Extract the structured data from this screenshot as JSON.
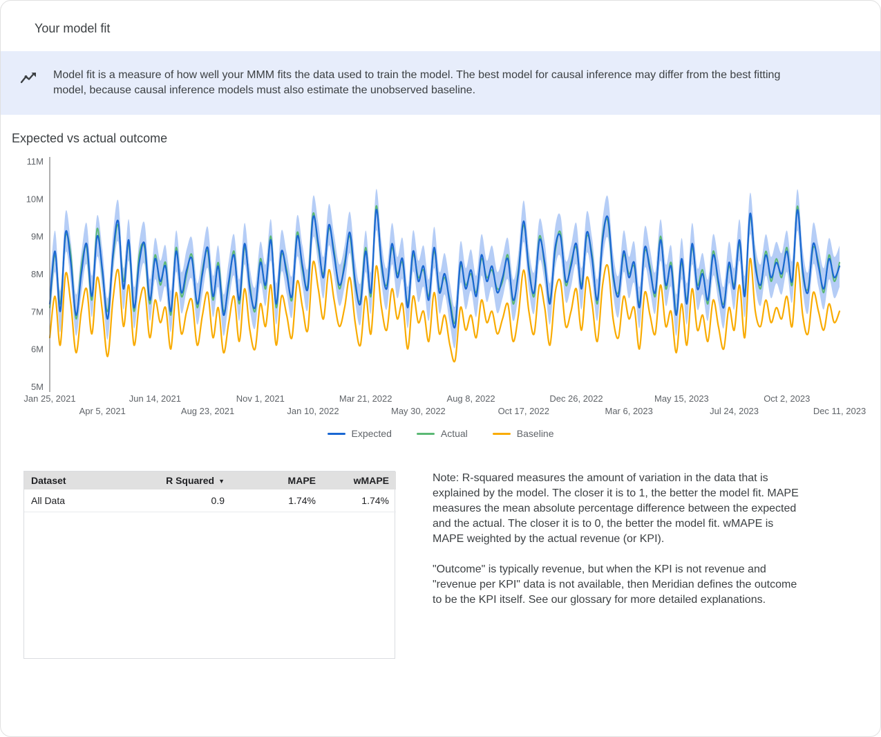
{
  "header": {
    "title": "Your model fit"
  },
  "banner": {
    "text": "Model fit is a measure of how well your MMM fits the data used to train the model. The best model for causal inference may differ from the best fitting model, because causal inference models must also estimate the unobserved baseline."
  },
  "section": {
    "title": "Expected vs actual outcome"
  },
  "table": {
    "headers": {
      "dataset": "Dataset",
      "r_squared": "R Squared",
      "mape": "MAPE",
      "wmape": "wMAPE"
    },
    "sort_icon": "▼",
    "rows": [
      {
        "dataset": "All Data",
        "r_squared": "0.9",
        "mape": "1.74%",
        "wmape": "1.74%"
      }
    ]
  },
  "notes": {
    "p1": "Note: R-squared measures the amount of variation in the data that is explained by the model. The closer it is to 1, the better the model fit. MAPE measures the mean absolute percentage difference between the expected and the actual. The closer it is to 0, the better the model fit. wMAPE is MAPE weighted by the actual revenue (or KPI).",
    "p2": "\"Outcome\" is typically revenue, but when the KPI is not revenue and \"revenue per KPI\" data is not available, then Meridian defines the outcome to be the KPI itself. See our glossary for more detailed explanations."
  },
  "chart_data": {
    "type": "line",
    "title": "Expected vs actual outcome",
    "unit": "M",
    "ylim": [
      5,
      11
    ],
    "y_ticks": [
      "5M",
      "6M",
      "7M",
      "8M",
      "9M",
      "10M",
      "11M"
    ],
    "x_ticks": [
      "Jan 25, 2021",
      "Apr 5, 2021",
      "Jun 14, 2021",
      "Aug 23, 2021",
      "Nov 1, 2021",
      "Jan 10, 2022",
      "Mar 21, 2022",
      "May 30, 2022",
      "Aug 8, 2022",
      "Oct 17, 2022",
      "Dec 26, 2022",
      "Mar 6, 2023",
      "May 15, 2023",
      "Jul 24, 2023",
      "Oct 2, 2023",
      "Dec 11, 2023"
    ],
    "legend_position": "bottom",
    "grid": false,
    "ci_margin": 0.55,
    "band_color": "#a8c4f5",
    "series": [
      {
        "name": "Expected",
        "color": "#1967d2",
        "values": [
          7.2,
          8.6,
          7.0,
          9.1,
          8.3,
          6.9,
          8.0,
          8.8,
          7.4,
          9.0,
          8.1,
          6.8,
          8.5,
          9.4,
          7.6,
          8.9,
          7.1,
          8.3,
          8.8,
          7.3,
          8.4,
          7.8,
          8.2,
          7.0,
          8.6,
          7.5,
          8.1,
          8.4,
          7.2,
          8.0,
          8.7,
          7.4,
          8.2,
          6.9,
          7.8,
          8.5,
          7.3,
          8.8,
          7.6,
          7.1,
          8.3,
          7.7,
          8.9,
          7.2,
          8.6,
          8.0,
          7.4,
          9.0,
          8.2,
          7.6,
          9.5,
          8.8,
          7.9,
          9.3,
          8.5,
          7.7,
          8.2,
          9.1,
          7.8,
          7.2,
          8.6,
          7.5,
          9.7,
          8.3,
          7.6,
          8.8,
          7.9,
          8.4,
          7.1,
          8.6,
          7.8,
          8.2,
          7.3,
          8.7,
          7.5,
          8.0,
          7.2,
          6.6,
          8.3,
          7.6,
          8.1,
          7.4,
          8.5,
          7.8,
          8.2,
          7.5,
          7.9,
          8.4,
          7.3,
          8.0,
          9.4,
          8.1,
          7.5,
          8.9,
          8.3,
          7.2,
          8.7,
          9.0,
          7.8,
          8.2,
          8.8,
          7.6,
          9.1,
          8.4,
          7.3,
          8.9,
          9.5,
          8.0,
          7.4,
          8.6,
          7.9,
          8.3,
          7.1,
          8.7,
          8.1,
          7.5,
          8.9,
          7.7,
          8.2,
          6.9,
          8.4,
          7.2,
          8.8,
          7.6,
          8.0,
          7.3,
          8.5,
          7.8,
          7.1,
          8.3,
          7.6,
          8.9,
          7.4,
          9.6,
          8.2,
          7.7,
          8.5,
          7.9,
          8.3,
          8.0,
          8.6,
          7.8,
          9.7,
          8.1,
          7.5,
          8.8,
          8.2,
          7.6,
          8.4,
          7.9,
          8.2
        ]
      },
      {
        "name": "Actual",
        "color": "#5bb974",
        "values": [
          7.1,
          8.5,
          7.2,
          9.0,
          8.5,
          6.8,
          8.2,
          8.7,
          7.3,
          9.2,
          8.0,
          7.0,
          8.4,
          9.3,
          7.8,
          8.8,
          7.0,
          8.5,
          8.7,
          7.2,
          8.5,
          7.7,
          8.3,
          6.9,
          8.7,
          7.4,
          8.0,
          8.5,
          7.1,
          8.1,
          8.6,
          7.3,
          8.3,
          7.0,
          7.7,
          8.6,
          7.2,
          8.7,
          7.7,
          7.0,
          8.4,
          7.6,
          9.0,
          7.1,
          8.5,
          8.1,
          7.3,
          9.1,
          8.1,
          7.7,
          9.6,
          8.7,
          8.0,
          9.2,
          8.6,
          7.6,
          8.3,
          9.0,
          7.7,
          7.3,
          8.7,
          7.4,
          9.8,
          8.2,
          7.7,
          8.7,
          8.0,
          8.3,
          7.2,
          8.5,
          7.9,
          8.1,
          7.4,
          8.6,
          7.6,
          7.9,
          7.3,
          6.7,
          8.2,
          7.7,
          8.0,
          7.5,
          8.4,
          7.9,
          8.1,
          7.6,
          7.8,
          8.5,
          7.2,
          8.1,
          9.3,
          8.2,
          7.4,
          9.0,
          8.2,
          7.3,
          8.6,
          9.1,
          7.7,
          8.3,
          8.7,
          7.7,
          9.0,
          8.5,
          7.2,
          9.0,
          9.4,
          7.9,
          7.5,
          8.5,
          8.0,
          8.2,
          7.2,
          8.6,
          8.2,
          7.4,
          9.0,
          7.6,
          8.3,
          7.0,
          8.3,
          7.3,
          8.7,
          7.7,
          8.1,
          7.2,
          8.6,
          7.7,
          7.2,
          8.2,
          7.7,
          8.8,
          7.5,
          9.5,
          8.3,
          7.6,
          8.6,
          7.8,
          8.4,
          7.9,
          8.7,
          7.7,
          9.8,
          8.0,
          7.6,
          8.7,
          8.3,
          7.5,
          8.5,
          7.8,
          8.3
        ]
      },
      {
        "name": "Baseline",
        "color": "#f9ab00",
        "values": [
          6.3,
          7.4,
          6.1,
          8.0,
          7.2,
          5.9,
          7.0,
          7.6,
          6.4,
          7.9,
          7.0,
          5.8,
          7.3,
          8.1,
          6.6,
          7.7,
          6.1,
          7.2,
          7.6,
          6.3,
          7.3,
          6.7,
          7.1,
          6.0,
          7.5,
          6.4,
          7.0,
          7.3,
          6.1,
          6.9,
          7.5,
          6.3,
          7.1,
          5.9,
          6.7,
          7.4,
          6.2,
          7.6,
          6.5,
          6.0,
          7.2,
          6.6,
          7.7,
          6.1,
          7.4,
          6.9,
          6.3,
          7.8,
          7.1,
          6.5,
          8.3,
          7.6,
          6.8,
          8.1,
          7.3,
          6.6,
          7.1,
          7.9,
          6.7,
          6.1,
          7.4,
          6.4,
          8.2,
          7.1,
          6.5,
          7.6,
          6.8,
          7.2,
          6.0,
          7.4,
          6.7,
          7.0,
          6.2,
          7.5,
          6.4,
          6.9,
          6.1,
          5.7,
          7.1,
          6.5,
          6.9,
          6.3,
          7.3,
          6.7,
          7.0,
          6.4,
          6.8,
          7.2,
          6.2,
          6.9,
          8.1,
          7.0,
          6.4,
          7.7,
          7.1,
          6.1,
          7.5,
          7.8,
          6.6,
          7.0,
          7.6,
          6.5,
          7.9,
          7.2,
          6.2,
          7.7,
          8.2,
          6.8,
          6.3,
          7.4,
          6.8,
          7.1,
          6.0,
          7.5,
          6.9,
          6.4,
          7.7,
          6.6,
          7.0,
          5.9,
          7.2,
          6.1,
          7.6,
          6.5,
          6.9,
          6.2,
          7.3,
          6.6,
          6.0,
          7.1,
          6.5,
          7.7,
          6.3,
          8.4,
          7.0,
          6.6,
          7.3,
          6.7,
          7.1,
          6.8,
          7.4,
          6.6,
          8.3,
          6.9,
          6.4,
          7.5,
          7.0,
          6.5,
          7.2,
          6.7,
          7.0
        ]
      }
    ]
  }
}
